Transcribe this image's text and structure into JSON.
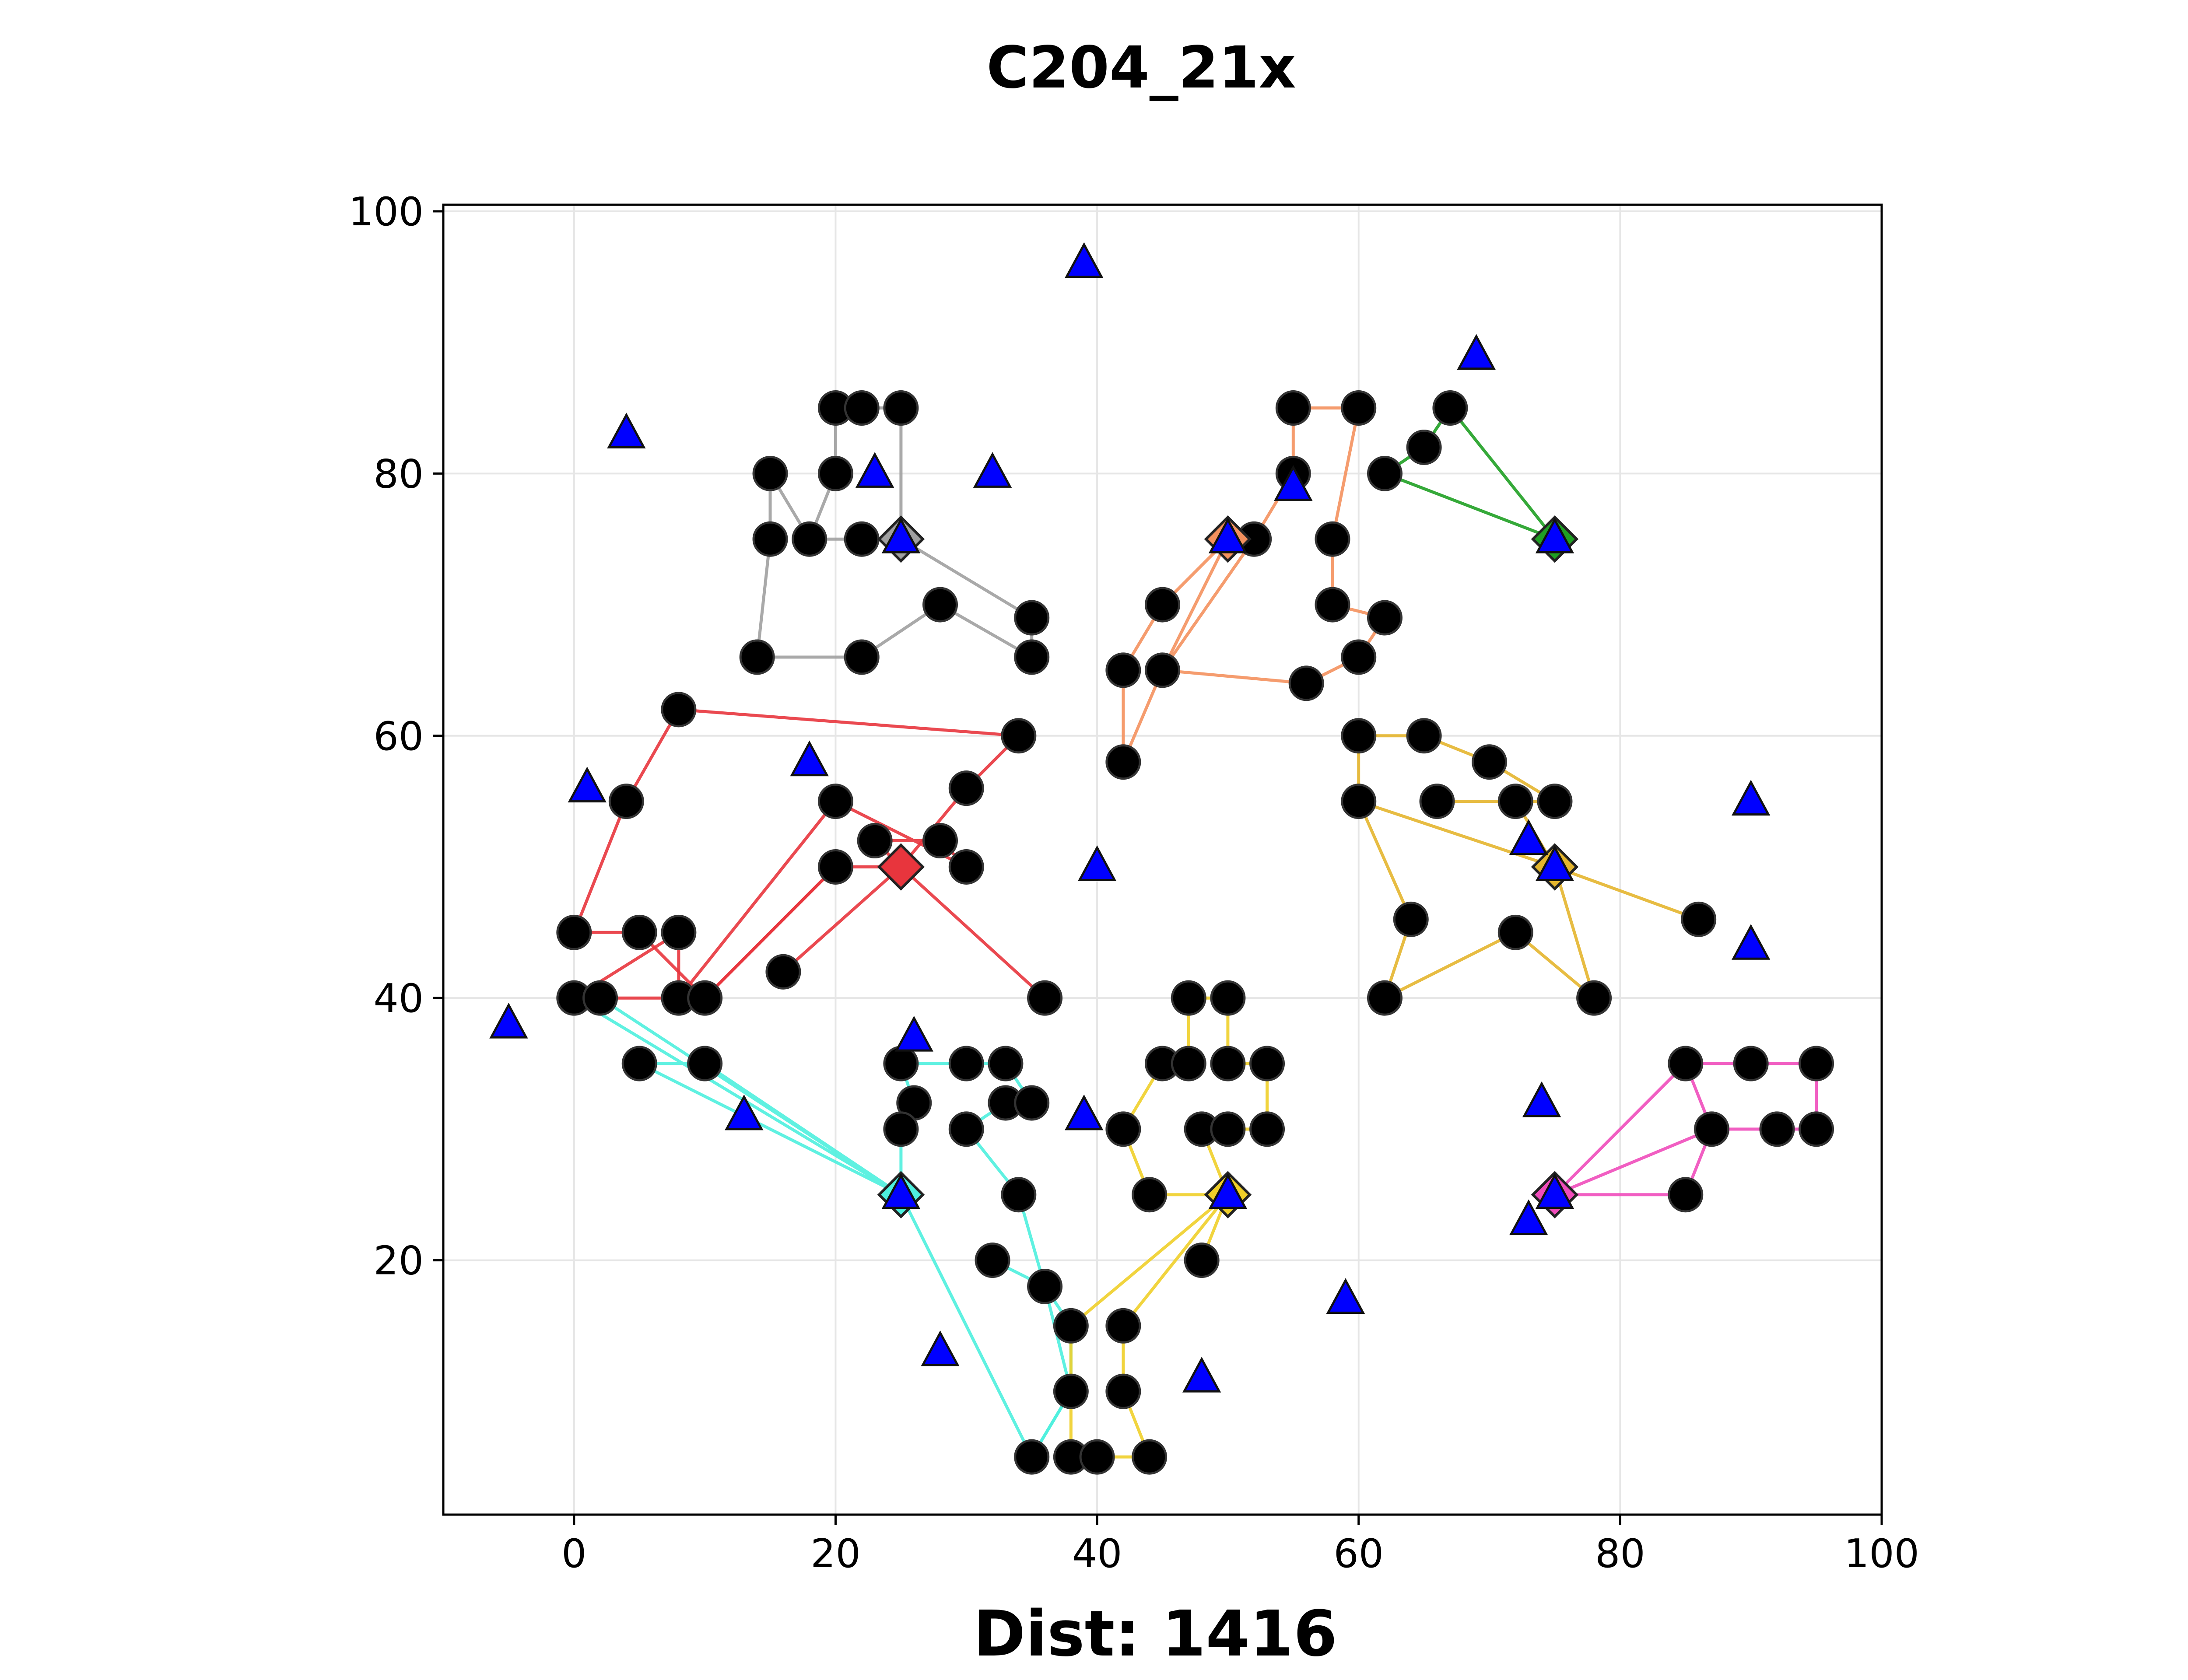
{
  "chart_data": {
    "type": "scatter",
    "title": "C204_21x",
    "xlabel": "Dist: 1416",
    "ylabel": "",
    "xlim": [
      -10,
      100
    ],
    "ylim": [
      0.6,
      100.5
    ],
    "xticks": [
      0,
      20,
      40,
      60,
      80,
      100
    ],
    "yticks": [
      20,
      40,
      60,
      80,
      100
    ],
    "grid": true,
    "depots": [
      {
        "x": 25,
        "y": 75,
        "color": "#a0a0a0"
      },
      {
        "x": 50,
        "y": 75,
        "color": "#f4915e"
      },
      {
        "x": 75,
        "y": 75,
        "color": "#1fa024"
      },
      {
        "x": 25,
        "y": 50,
        "color": "#e8353d"
      },
      {
        "x": 75,
        "y": 50,
        "color": "#e4b52e"
      },
      {
        "x": 25,
        "y": 25,
        "color": "#4ef0de"
      },
      {
        "x": 50,
        "y": 25,
        "color": "#efcf29"
      },
      {
        "x": 75,
        "y": 25,
        "color": "#f04cbb"
      }
    ],
    "customers": [
      [
        20,
        85
      ],
      [
        22,
        85
      ],
      [
        25,
        85
      ],
      [
        15,
        80
      ],
      [
        20,
        80
      ],
      [
        15,
        75
      ],
      [
        18,
        75
      ],
      [
        22,
        75
      ],
      [
        28,
        70
      ],
      [
        35,
        69
      ],
      [
        14,
        66
      ],
      [
        22,
        66
      ],
      [
        35,
        66
      ],
      [
        55,
        85
      ],
      [
        60,
        85
      ],
      [
        55,
        80
      ],
      [
        52,
        75
      ],
      [
        58,
        75
      ],
      [
        45,
        70
      ],
      [
        58,
        70
      ],
      [
        62,
        69
      ],
      [
        42,
        65
      ],
      [
        45,
        65
      ],
      [
        56,
        64
      ],
      [
        60,
        66
      ],
      [
        42,
        58
      ],
      [
        67,
        85
      ],
      [
        65,
        82
      ],
      [
        62,
        80
      ],
      [
        8,
        62
      ],
      [
        34,
        60
      ],
      [
        4,
        55
      ],
      [
        30,
        56
      ],
      [
        20,
        55
      ],
      [
        23,
        52
      ],
      [
        28,
        52
      ],
      [
        20,
        50
      ],
      [
        30,
        50
      ],
      [
        0,
        45
      ],
      [
        5,
        45
      ],
      [
        8,
        45
      ],
      [
        16,
        42
      ],
      [
        0,
        40
      ],
      [
        2,
        40
      ],
      [
        8,
        40
      ],
      [
        10,
        40
      ],
      [
        36,
        40
      ],
      [
        60,
        60
      ],
      [
        65,
        60
      ],
      [
        70,
        58
      ],
      [
        60,
        55
      ],
      [
        66,
        55
      ],
      [
        72,
        55
      ],
      [
        75,
        55
      ],
      [
        86,
        46
      ],
      [
        64,
        46
      ],
      [
        72,
        45
      ],
      [
        62,
        40
      ],
      [
        78,
        40
      ],
      [
        5,
        35
      ],
      [
        10,
        35
      ],
      [
        25,
        35
      ],
      [
        30,
        35
      ],
      [
        33,
        35
      ],
      [
        26,
        32
      ],
      [
        33,
        32
      ],
      [
        35,
        32
      ],
      [
        25,
        30
      ],
      [
        30,
        30
      ],
      [
        34,
        25
      ],
      [
        32,
        20
      ],
      [
        36,
        18
      ],
      [
        38,
        15
      ],
      [
        38,
        10
      ],
      [
        35,
        5
      ],
      [
        38,
        5
      ],
      [
        47,
        40
      ],
      [
        50,
        40
      ],
      [
        45,
        35
      ],
      [
        47,
        35
      ],
      [
        50,
        35
      ],
      [
        53,
        35
      ],
      [
        42,
        30
      ],
      [
        48,
        30
      ],
      [
        50,
        30
      ],
      [
        53,
        30
      ],
      [
        44,
        25
      ],
      [
        48,
        20
      ],
      [
        42,
        15
      ],
      [
        42,
        10
      ],
      [
        40,
        5
      ],
      [
        44,
        5
      ],
      [
        85,
        35
      ],
      [
        90,
        35
      ],
      [
        95,
        35
      ],
      [
        87,
        30
      ],
      [
        92,
        30
      ],
      [
        95,
        30
      ],
      [
        85,
        25
      ]
    ],
    "stations": [
      [
        39,
        96
      ],
      [
        69,
        89
      ],
      [
        4,
        83
      ],
      [
        23,
        80
      ],
      [
        32,
        80
      ],
      [
        55,
        79
      ],
      [
        25,
        75
      ],
      [
        50,
        75
      ],
      [
        75,
        75
      ],
      [
        1,
        56
      ],
      [
        18,
        58
      ],
      [
        40,
        50
      ],
      [
        90,
        55
      ],
      [
        73,
        52
      ],
      [
        75,
        50
      ],
      [
        90,
        44
      ],
      [
        -5,
        38
      ],
      [
        26,
        37
      ],
      [
        13,
        31
      ],
      [
        39,
        31
      ],
      [
        74,
        32
      ],
      [
        25,
        25
      ],
      [
        50,
        25
      ],
      [
        75,
        25
      ],
      [
        73,
        23
      ],
      [
        59,
        17
      ],
      [
        28,
        13
      ],
      [
        48,
        11
      ]
    ],
    "series": [
      {
        "color": "#a0a0a0",
        "points": [
          [
            25,
            75
          ],
          [
            35,
            69
          ],
          [
            35,
            66
          ],
          [
            28,
            70
          ],
          [
            22,
            66
          ],
          [
            14,
            66
          ],
          [
            15,
            75
          ],
          [
            15,
            80
          ],
          [
            18,
            75
          ],
          [
            20,
            80
          ],
          [
            20,
            85
          ],
          [
            22,
            85
          ],
          [
            25,
            85
          ],
          [
            25,
            75
          ]
        ]
      },
      {
        "color": "#a0a0a0",
        "points": [
          [
            25,
            75
          ],
          [
            22,
            75
          ],
          [
            18,
            75
          ]
        ]
      },
      {
        "color": "#f4915e",
        "points": [
          [
            50,
            75
          ],
          [
            45,
            70
          ],
          [
            42,
            65
          ],
          [
            42,
            58
          ],
          [
            45,
            65
          ],
          [
            52,
            75
          ],
          [
            55,
            80
          ],
          [
            55,
            85
          ],
          [
            60,
            85
          ],
          [
            58,
            75
          ],
          [
            58,
            70
          ],
          [
            62,
            69
          ],
          [
            60,
            66
          ],
          [
            56,
            64
          ],
          [
            45,
            65
          ],
          [
            50,
            75
          ]
        ]
      },
      {
        "color": "#1fa024",
        "points": [
          [
            75,
            75
          ],
          [
            67,
            85
          ],
          [
            65,
            82
          ],
          [
            62,
            80
          ],
          [
            75,
            75
          ]
        ]
      },
      {
        "color": "#e8353d",
        "points": [
          [
            25,
            50
          ],
          [
            30,
            56
          ],
          [
            34,
            60
          ],
          [
            8,
            62
          ],
          [
            4,
            55
          ],
          [
            0,
            45
          ],
          [
            5,
            45
          ],
          [
            10,
            40
          ],
          [
            20,
            50
          ],
          [
            25,
            50
          ],
          [
            36,
            40
          ]
        ]
      },
      {
        "color": "#e8353d",
        "points": [
          [
            25,
            50
          ],
          [
            16,
            42
          ]
        ]
      },
      {
        "color": "#e8353d",
        "points": [
          [
            25,
            50
          ],
          [
            23,
            52
          ],
          [
            28,
            52
          ],
          [
            30,
            50
          ],
          [
            20,
            55
          ],
          [
            8,
            40
          ],
          [
            8,
            45
          ],
          [
            0,
            40
          ],
          [
            2,
            40
          ],
          [
            10,
            40
          ],
          [
            20,
            50
          ]
        ]
      },
      {
        "color": "#e4b52e",
        "points": [
          [
            75,
            50
          ],
          [
            60,
            55
          ],
          [
            64,
            46
          ],
          [
            62,
            40
          ],
          [
            72,
            45
          ],
          [
            78,
            40
          ],
          [
            75,
            50
          ],
          [
            86,
            46
          ],
          [
            75,
            50
          ],
          [
            72,
            55
          ],
          [
            66,
            55
          ],
          [
            75,
            55
          ],
          [
            70,
            58
          ],
          [
            65,
            60
          ],
          [
            60,
            60
          ],
          [
            60,
            55
          ]
        ]
      },
      {
        "color": "#4ef0de",
        "points": [
          [
            25,
            25
          ],
          [
            0,
            40
          ],
          [
            2,
            40
          ],
          [
            25,
            25
          ],
          [
            5,
            35
          ],
          [
            10,
            35
          ],
          [
            25,
            25
          ],
          [
            25,
            30
          ],
          [
            26,
            32
          ],
          [
            25,
            35
          ],
          [
            30,
            35
          ],
          [
            33,
            35
          ],
          [
            35,
            32
          ],
          [
            33,
            32
          ],
          [
            30,
            30
          ],
          [
            34,
            25
          ],
          [
            36,
            18
          ],
          [
            38,
            15
          ],
          [
            38,
            10
          ],
          [
            35,
            5
          ],
          [
            25,
            25
          ]
        ]
      },
      {
        "color": "#4ef0de",
        "points": [
          [
            32,
            20
          ],
          [
            36,
            18
          ],
          [
            38,
            10
          ],
          [
            35,
            5
          ]
        ]
      },
      {
        "color": "#efcf29",
        "points": [
          [
            50,
            25
          ],
          [
            44,
            25
          ],
          [
            42,
            30
          ],
          [
            45,
            35
          ],
          [
            47,
            35
          ],
          [
            47,
            40
          ],
          [
            50,
            40
          ],
          [
            50,
            35
          ],
          [
            53,
            35
          ],
          [
            53,
            30
          ],
          [
            50,
            30
          ],
          [
            48,
            30
          ],
          [
            50,
            25
          ],
          [
            48,
            20
          ],
          [
            50,
            25
          ],
          [
            38,
            15
          ],
          [
            38,
            5
          ],
          [
            40,
            5
          ],
          [
            44,
            5
          ],
          [
            42,
            10
          ],
          [
            42,
            15
          ],
          [
            50,
            25
          ]
        ]
      },
      {
        "color": "#f04cbb",
        "points": [
          [
            75,
            25
          ],
          [
            85,
            35
          ],
          [
            90,
            35
          ],
          [
            95,
            35
          ],
          [
            95,
            30
          ],
          [
            92,
            30
          ],
          [
            87,
            30
          ],
          [
            85,
            35
          ],
          [
            75,
            25
          ],
          [
            85,
            25
          ],
          [
            87,
            30
          ],
          [
            75,
            25
          ]
        ]
      }
    ]
  }
}
